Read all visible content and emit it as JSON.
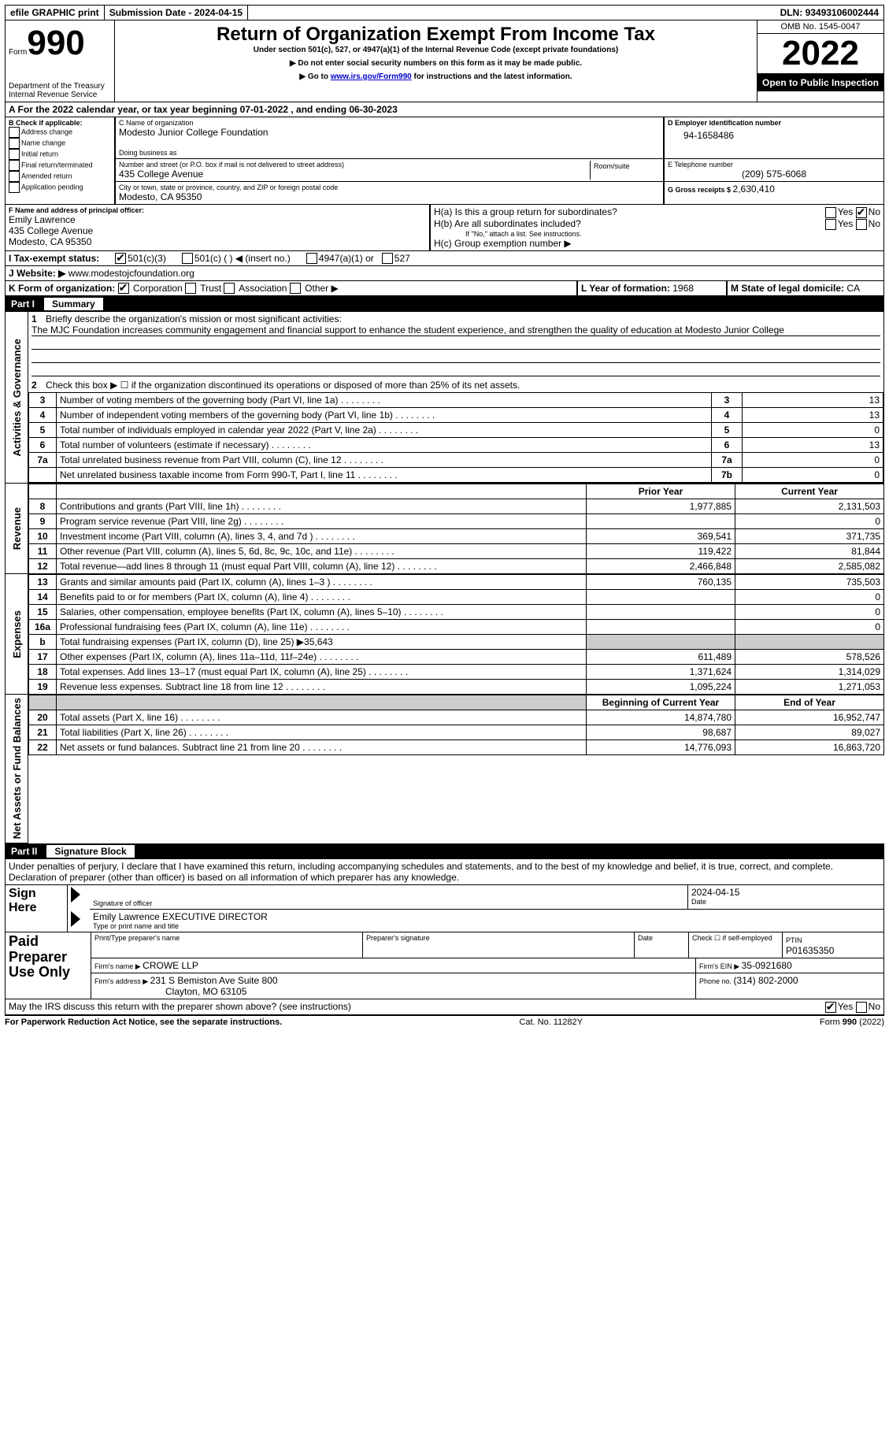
{
  "topbar": {
    "efile": "efile GRAPHIC print",
    "subdate_label": "Submission Date - ",
    "subdate": "2024-04-15",
    "dln_label": "DLN: ",
    "dln": "93493106002444"
  },
  "header": {
    "form_word": "Form",
    "form_num": "990",
    "dept": "Department of the Treasury",
    "irs": "Internal Revenue Service",
    "title": "Return of Organization Exempt From Income Tax",
    "sub1": "Under section 501(c), 527, or 4947(a)(1) of the Internal Revenue Code (except private foundations)",
    "sub2": "▶ Do not enter social security numbers on this form as it may be made public.",
    "sub3_pre": "▶ Go to ",
    "sub3_link": "www.irs.gov/Form990",
    "sub3_post": " for instructions and the latest information.",
    "omb": "OMB No. 1545-0047",
    "year": "2022",
    "open": "Open to Public Inspection"
  },
  "line_a": "A For the 2022 calendar year, or tax year beginning 07-01-2022     , and ending 06-30-2023",
  "boxB": {
    "label": "B Check if applicable:",
    "items": [
      "Address change",
      "Name change",
      "Initial return",
      "Final return/terminated",
      "Amended return",
      "Application pending"
    ]
  },
  "boxC": {
    "name_label": "C Name of organization",
    "name": "Modesto Junior College Foundation",
    "dba_label": "Doing business as",
    "addr_label": "Number and street (or P.O. box if mail is not delivered to street address)",
    "room_label": "Room/suite",
    "addr": "435 College Avenue",
    "city_label": "City or town, state or province, country, and ZIP or foreign postal code",
    "city": "Modesto, CA  95350"
  },
  "boxD": {
    "label": "D Employer identification number",
    "val": "94-1658486"
  },
  "boxE": {
    "label": "E Telephone number",
    "val": "(209) 575-6068"
  },
  "boxG": {
    "label": "G Gross receipts $ ",
    "val": "2,630,410"
  },
  "boxF": {
    "label": "F  Name and address of principal officer:",
    "name": "Emily Lawrence",
    "addr1": "435 College Avenue",
    "addr2": "Modesto, CA  95350"
  },
  "boxH": {
    "ha": "H(a)  Is this a group return for subordinates?",
    "hb": "H(b)  Are all subordinates included?",
    "hb_note": "If \"No,\" attach a list. See instructions.",
    "hc": "H(c)  Group exemption number ▶",
    "yes": "Yes",
    "no": "No"
  },
  "boxI": {
    "label": "I   Tax-exempt status:",
    "opts": [
      "501(c)(3)",
      "501(c) (  ) ◀ (insert no.)",
      "4947(a)(1) or",
      "527"
    ]
  },
  "boxJ": {
    "label": "J   Website: ▶  ",
    "val": "www.modestojcfoundation.org"
  },
  "boxK": {
    "label": "K Form of organization:",
    "opts": [
      "Corporation",
      "Trust",
      "Association",
      "Other ▶"
    ]
  },
  "boxL": {
    "label": "L Year of formation: ",
    "val": "1968"
  },
  "boxM": {
    "label": "M State of legal domicile: ",
    "val": "CA"
  },
  "part1": {
    "num": "Part I",
    "title": "Summary"
  },
  "summary": {
    "q1_label": "1",
    "q1": "Briefly describe the organization's mission or most significant activities:",
    "q1_text": "The MJC Foundation increases community engagement and financial support to enhance the student experience, and strengthen the quality of education at Modesto Junior College",
    "q2_label": "2",
    "q2": "Check this box ▶ ☐ if the organization discontinued its operations or disposed of more than 25% of its net assets.",
    "sidebars": {
      "ag": "Activities & Governance",
      "rev": "Revenue",
      "exp": "Expenses",
      "na": "Net Assets or Fund Balances"
    },
    "gov_rows": [
      {
        "n": "3",
        "d": "Number of voting members of the governing body (Part VI, line 1a)",
        "box": "3",
        "v": "13"
      },
      {
        "n": "4",
        "d": "Number of independent voting members of the governing body (Part VI, line 1b)",
        "box": "4",
        "v": "13"
      },
      {
        "n": "5",
        "d": "Total number of individuals employed in calendar year 2022 (Part V, line 2a)",
        "box": "5",
        "v": "0"
      },
      {
        "n": "6",
        "d": "Total number of volunteers (estimate if necessary)",
        "box": "6",
        "v": "13"
      },
      {
        "n": "7a",
        "d": "Total unrelated business revenue from Part VIII, column (C), line 12",
        "box": "7a",
        "v": "0"
      },
      {
        "n": "",
        "d": "Net unrelated business taxable income from Form 990-T, Part I, line 11",
        "box": "7b",
        "v": "0"
      }
    ],
    "col_h1": "Prior Year",
    "col_h2": "Current Year",
    "rev_rows": [
      {
        "n": "8",
        "d": "Contributions and grants (Part VIII, line 1h)",
        "p": "1,977,885",
        "c": "2,131,503"
      },
      {
        "n": "9",
        "d": "Program service revenue (Part VIII, line 2g)",
        "p": "",
        "c": "0"
      },
      {
        "n": "10",
        "d": "Investment income (Part VIII, column (A), lines 3, 4, and 7d )",
        "p": "369,541",
        "c": "371,735"
      },
      {
        "n": "11",
        "d": "Other revenue (Part VIII, column (A), lines 5, 6d, 8c, 9c, 10c, and 11e)",
        "p": "119,422",
        "c": "81,844"
      },
      {
        "n": "12",
        "d": "Total revenue—add lines 8 through 11 (must equal Part VIII, column (A), line 12)",
        "p": "2,466,848",
        "c": "2,585,082"
      }
    ],
    "exp_rows": [
      {
        "n": "13",
        "d": "Grants and similar amounts paid (Part IX, column (A), lines 1–3 )",
        "p": "760,135",
        "c": "735,503"
      },
      {
        "n": "14",
        "d": "Benefits paid to or for members (Part IX, column (A), line 4)",
        "p": "",
        "c": "0"
      },
      {
        "n": "15",
        "d": "Salaries, other compensation, employee benefits (Part IX, column (A), lines 5–10)",
        "p": "",
        "c": "0"
      },
      {
        "n": "16a",
        "d": "Professional fundraising fees (Part IX, column (A), line 11e)",
        "p": "",
        "c": "0"
      },
      {
        "n": "b",
        "d": "Total fundraising expenses (Part IX, column (D), line 25) ▶35,643",
        "p": "shade",
        "c": "shade"
      },
      {
        "n": "17",
        "d": "Other expenses (Part IX, column (A), lines 11a–11d, 11f–24e)",
        "p": "611,489",
        "c": "578,526"
      },
      {
        "n": "18",
        "d": "Total expenses. Add lines 13–17 (must equal Part IX, column (A), line 25)",
        "p": "1,371,624",
        "c": "1,314,029"
      },
      {
        "n": "19",
        "d": "Revenue less expenses. Subtract line 18 from line 12",
        "p": "1,095,224",
        "c": "1,271,053"
      }
    ],
    "na_h1": "Beginning of Current Year",
    "na_h2": "End of Year",
    "na_rows": [
      {
        "n": "20",
        "d": "Total assets (Part X, line 16)",
        "p": "14,874,780",
        "c": "16,952,747"
      },
      {
        "n": "21",
        "d": "Total liabilities (Part X, line 26)",
        "p": "98,687",
        "c": "89,027"
      },
      {
        "n": "22",
        "d": "Net assets or fund balances. Subtract line 21 from line 20",
        "p": "14,776,093",
        "c": "16,863,720"
      }
    ]
  },
  "part2": {
    "num": "Part II",
    "title": "Signature Block"
  },
  "sig": {
    "decl": "Under penalties of perjury, I declare that I have examined this return, including accompanying schedules and statements, and to the best of my knowledge and belief, it is true, correct, and complete. Declaration of preparer (other than officer) is based on all information of which preparer has any knowledge.",
    "sign_here": "Sign Here",
    "sig_officer": "Signature of officer",
    "date": "Date",
    "date_val": "2024-04-15",
    "name_title": "Emily Lawrence  EXECUTIVE DIRECTOR",
    "type_name": "Type or print name and title",
    "paid": "Paid Preparer Use Only",
    "prep_name_l": "Print/Type preparer's name",
    "prep_sig_l": "Preparer's signature",
    "date_l": "Date",
    "check_self": "Check ☐ if self-employed",
    "ptin_l": "PTIN",
    "ptin": "P01635350",
    "firm_name_l": "Firm's name    ▶ ",
    "firm_name": "CROWE LLP",
    "firm_ein_l": "Firm's EIN ▶ ",
    "firm_ein": "35-0921680",
    "firm_addr_l": "Firm's address ▶ ",
    "firm_addr1": "231 S Bemiston Ave Suite 800",
    "firm_addr2": "Clayton, MO  63105",
    "phone_l": "Phone no. ",
    "phone": "(314) 802-2000",
    "discuss": "May the IRS discuss this return with the preparer shown above? (see instructions)",
    "yes": "Yes",
    "no": "No"
  },
  "footer": {
    "left": "For Paperwork Reduction Act Notice, see the separate instructions.",
    "mid": "Cat. No. 11282Y",
    "right": "Form 990 (2022)"
  }
}
